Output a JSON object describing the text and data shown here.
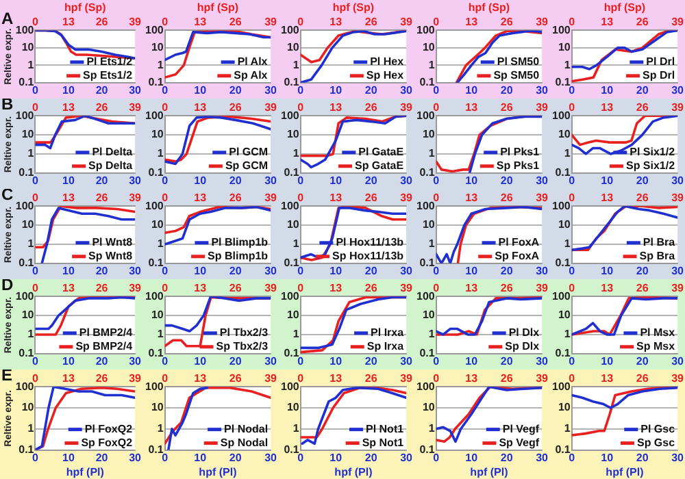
{
  "chart_data": [
    {
      "type": "line",
      "title": "A",
      "ylabel": "Reltive expr.",
      "x2label": "hpf (Sp)",
      "xlim": [
        0,
        30
      ],
      "xticks": [
        0,
        10,
        20,
        30
      ],
      "x2lim": [
        0,
        39
      ],
      "x2ticks": [
        0,
        13,
        26,
        39
      ],
      "ylim": [
        0.1,
        100
      ],
      "yticks": [
        0.1,
        1,
        10,
        100
      ],
      "log": "y",
      "grid": "y",
      "legend": "bottom right",
      "marker": "none",
      "series": [
        {
          "name": "Pl Ets1/2",
          "color": "#2030d0",
          "x": [
            0,
            3,
            6,
            8,
            10,
            12,
            16,
            20,
            24,
            28,
            30
          ],
          "values": [
            100,
            100,
            90,
            50,
            15,
            8,
            8,
            6,
            4,
            3,
            2.5
          ]
        },
        {
          "name": "Sp Ets1/2",
          "color": "#e82020",
          "axis": "x2",
          "x": [
            0,
            4,
            8,
            10,
            12,
            14,
            16,
            20,
            26,
            32,
            39
          ],
          "values": [
            100,
            100,
            90,
            60,
            20,
            6,
            4,
            4,
            3.5,
            3,
            2.5
          ]
        }
      ]
    },
    {
      "type": "line",
      "x2label": "hpf (Sp)",
      "xlim": [
        0,
        30
      ],
      "xticks": [
        0,
        10,
        20,
        30
      ],
      "x2lim": [
        0,
        39
      ],
      "x2ticks": [
        0,
        13,
        26,
        39
      ],
      "ylim": [
        0.1,
        100
      ],
      "yticks": [
        0.1,
        1,
        10,
        100
      ],
      "log": "y",
      "grid": "y",
      "legend": "bottom right",
      "marker": "none",
      "series": [
        {
          "name": "Pl Alx",
          "color": "#2030d0",
          "x": [
            0,
            3,
            5,
            6,
            8,
            12,
            16,
            20,
            24,
            28,
            30
          ],
          "values": [
            2,
            4,
            5,
            6,
            80,
            70,
            80,
            70,
            60,
            40,
            40
          ]
        },
        {
          "name": "Sp Alx",
          "color": "#e82020",
          "axis": "x2",
          "x": [
            0,
            4,
            7,
            9,
            11,
            16,
            20,
            26,
            32,
            39
          ],
          "values": [
            0.2,
            0.3,
            1,
            10,
            80,
            90,
            90,
            90,
            60,
            40
          ]
        }
      ]
    },
    {
      "type": "line",
      "x2label": "hpf (Sp)",
      "xlim": [
        0,
        30
      ],
      "xticks": [
        0,
        10,
        20,
        30
      ],
      "x2lim": [
        0,
        39
      ],
      "x2ticks": [
        0,
        13,
        26,
        39
      ],
      "ylim": [
        0.1,
        100
      ],
      "yticks": [
        0.1,
        1,
        10,
        100
      ],
      "log": "y",
      "grid": "y",
      "legend": "bottom right",
      "marker": "none",
      "series": [
        {
          "name": "Pl Hex",
          "color": "#2030d0",
          "x": [
            0,
            3,
            6,
            9,
            12,
            15,
            18,
            21,
            24,
            28,
            30
          ],
          "values": [
            0.1,
            0.15,
            1,
            10,
            50,
            80,
            90,
            60,
            60,
            80,
            90
          ]
        },
        {
          "name": "Sp Hex",
          "color": "#e82020",
          "axis": "x2",
          "x": [
            0,
            4,
            7,
            10,
            14,
            20,
            26,
            30,
            36,
            39
          ],
          "values": [
            4,
            1.5,
            2,
            10,
            50,
            90,
            70,
            60,
            80,
            100
          ]
        }
      ]
    },
    {
      "type": "line",
      "x2label": "hpf (Sp)",
      "xlim": [
        0,
        30
      ],
      "xticks": [
        0,
        10,
        20,
        30
      ],
      "x2lim": [
        0,
        39
      ],
      "x2ticks": [
        0,
        13,
        26,
        39
      ],
      "ylim": [
        0.1,
        100
      ],
      "yticks": [
        0.1,
        1,
        10,
        100
      ],
      "log": "y",
      "grid": "y",
      "legend": "bottom right",
      "marker": "none",
      "series": [
        {
          "name": "Pl SM50",
          "color": "#2030d0",
          "x": [
            6,
            8,
            10,
            12,
            14,
            16,
            18,
            20,
            22,
            24,
            26,
            28,
            30
          ],
          "values": [
            0.1,
            0.3,
            1,
            3,
            5,
            20,
            50,
            60,
            70,
            80,
            90,
            90,
            80
          ]
        },
        {
          "name": "Sp SM50",
          "color": "#e82020",
          "axis": "x2",
          "x": [
            7.5,
            11,
            16,
            18,
            22,
            26,
            32,
            39
          ],
          "values": [
            0.1,
            1,
            5,
            10,
            50,
            90,
            90,
            70
          ]
        }
      ]
    },
    {
      "type": "line",
      "x2label": "hpf (Sp)",
      "xlim": [
        0,
        30
      ],
      "xticks": [
        0,
        10,
        20,
        30
      ],
      "x2lim": [
        0,
        39
      ],
      "x2ticks": [
        0,
        13,
        26,
        39
      ],
      "ylim": [
        0.1,
        100
      ],
      "yticks": [
        0.1,
        1,
        10,
        100
      ],
      "log": "y",
      "grid": "y",
      "legend": "bottom right",
      "marker": "none",
      "series": [
        {
          "name": "Pl Drl",
          "color": "#2030d0",
          "x": [
            0,
            3,
            5,
            7,
            10,
            13,
            15,
            17,
            20,
            24,
            27,
            30
          ],
          "values": [
            0.8,
            0.8,
            0.6,
            1,
            3,
            10,
            10,
            6,
            8,
            30,
            80,
            100
          ]
        },
        {
          "name": "Sp Drl",
          "color": "#e82020",
          "axis": "x2",
          "x": [
            0,
            4,
            8,
            11,
            16,
            22,
            26,
            32,
            36,
            39
          ],
          "values": [
            0.12,
            0.15,
            0.2,
            2,
            8,
            6,
            10,
            60,
            100,
            100
          ]
        }
      ]
    },
    {
      "type": "line",
      "title": "B",
      "ylabel": "Reltive expr.",
      "xlim": [
        0,
        30
      ],
      "xticks": [
        0,
        10,
        20,
        30
      ],
      "x2lim": [
        0,
        39
      ],
      "x2ticks": [
        0,
        13,
        26,
        39
      ],
      "ylim": [
        0.1,
        100
      ],
      "yticks": [
        0.1,
        1,
        10,
        100
      ],
      "log": "y",
      "grid": "y",
      "legend": "bottom right",
      "marker": "none",
      "series": [
        {
          "name": "Pl Delta",
          "color": "#2030d0",
          "x": [
            0,
            3,
            4.5,
            6,
            8,
            12,
            15,
            19,
            22,
            26,
            30
          ],
          "values": [
            3,
            3,
            2,
            10,
            50,
            60,
            100,
            60,
            40,
            40,
            40
          ]
        },
        {
          "name": "Sp Delta",
          "color": "#e82020",
          "axis": "x2",
          "x": [
            0,
            6,
            8,
            12,
            18,
            24,
            30,
            39
          ],
          "values": [
            4,
            4,
            10,
            80,
            100,
            70,
            50,
            40
          ]
        }
      ]
    },
    {
      "type": "line",
      "xlim": [
        0,
        30
      ],
      "xticks": [
        0,
        10,
        20,
        30
      ],
      "x2lim": [
        0,
        39
      ],
      "x2ticks": [
        0,
        13,
        26,
        39
      ],
      "ylim": [
        0.1,
        100
      ],
      "yticks": [
        0.1,
        1,
        10,
        100
      ],
      "log": "y",
      "grid": "y",
      "legend": "bottom right",
      "marker": "none",
      "series": [
        {
          "name": "Pl GCM",
          "color": "#2030d0",
          "x": [
            0,
            3,
            5,
            7,
            9,
            12,
            16,
            20,
            25,
            30
          ],
          "values": [
            0.4,
            0.3,
            1,
            30,
            80,
            90,
            80,
            60,
            40,
            20
          ]
        },
        {
          "name": "Sp GCM",
          "color": "#e82020",
          "axis": "x2",
          "x": [
            0,
            4,
            6,
            8,
            12,
            16,
            24,
            32,
            39
          ],
          "values": [
            0.5,
            0.4,
            0.5,
            1,
            50,
            80,
            90,
            70,
            50
          ]
        }
      ]
    },
    {
      "type": "line",
      "xlim": [
        0,
        30
      ],
      "xticks": [
        0,
        10,
        20,
        30
      ],
      "x2lim": [
        0,
        39
      ],
      "x2ticks": [
        0,
        13,
        26,
        39
      ],
      "ylim": [
        0.1,
        100
      ],
      "yticks": [
        0.1,
        1,
        10,
        100
      ],
      "log": "y",
      "grid": "y",
      "legend": "bottom right",
      "marker": "none",
      "series": [
        {
          "name": "Pl GataE",
          "color": "#2030d0",
          "x": [
            0,
            2,
            3,
            5,
            7,
            10,
            12,
            16,
            20,
            24,
            27,
            30
          ],
          "values": [
            0.5,
            0.3,
            0.2,
            0.3,
            0.5,
            5,
            50,
            60,
            50,
            40,
            90,
            100
          ]
        },
        {
          "name": "Sp GataE",
          "color": "#e82020",
          "axis": "x2",
          "x": [
            0,
            4,
            10,
            12,
            14,
            17,
            24,
            30,
            35,
            39
          ],
          "values": [
            0.8,
            0.8,
            0.8,
            1,
            40,
            80,
            70,
            50,
            90,
            100
          ]
        }
      ]
    },
    {
      "type": "line",
      "xlim": [
        0,
        30
      ],
      "xticks": [
        0,
        10,
        20,
        30
      ],
      "x2lim": [
        0,
        39
      ],
      "x2ticks": [
        0,
        13,
        26,
        39
      ],
      "ylim": [
        0.1,
        100
      ],
      "yticks": [
        0.1,
        1,
        10,
        100
      ],
      "log": "y",
      "grid": "y",
      "legend": "bottom right",
      "marker": "none",
      "series": [
        {
          "name": "Pl Pks1",
          "color": "#2030d0",
          "x": [
            9.5,
            11,
            13,
            16,
            20,
            25,
            30
          ],
          "values": [
            0.1,
            1,
            10,
            40,
            70,
            90,
            90
          ]
        },
        {
          "name": "Sp Pks1",
          "color": "#e82020",
          "axis": "x2",
          "x": [
            0,
            2,
            6,
            10,
            12,
            14,
            16,
            20,
            26,
            32,
            39
          ],
          "values": [
            0.4,
            0.15,
            0.12,
            0.15,
            0.15,
            1,
            10,
            30,
            70,
            90,
            100
          ]
        }
      ]
    },
    {
      "type": "line",
      "xlim": [
        0,
        30
      ],
      "xticks": [
        0,
        10,
        20,
        30
      ],
      "x2lim": [
        0,
        39
      ],
      "x2ticks": [
        0,
        13,
        26,
        39
      ],
      "ylim": [
        0.1,
        100
      ],
      "yticks": [
        0.1,
        1,
        10,
        100
      ],
      "log": "y",
      "grid": "y",
      "legend": "bottom right",
      "marker": "none",
      "series": [
        {
          "name": "Pl Six1/2",
          "color": "#2030d0",
          "x": [
            0,
            2,
            4,
            6,
            8,
            11,
            14,
            17,
            20,
            23,
            26,
            30
          ],
          "values": [
            3,
            2,
            1,
            2,
            2,
            1,
            1.5,
            3,
            10,
            50,
            80,
            100
          ]
        },
        {
          "name": "Sp Six1/2",
          "color": "#e82020",
          "axis": "x2",
          "x": [
            0,
            3,
            6,
            9,
            14,
            20,
            22,
            24,
            27,
            39
          ],
          "values": [
            10,
            3,
            4,
            5,
            4,
            4,
            5,
            40,
            100,
            100
          ]
        }
      ]
    },
    {
      "type": "line",
      "title": "C",
      "ylabel": "Reltive expr.",
      "xlim": [
        0,
        30
      ],
      "xticks": [
        0,
        10,
        20,
        30
      ],
      "x2lim": [
        0,
        39
      ],
      "x2ticks": [
        0,
        13,
        26,
        39
      ],
      "ylim": [
        0.1,
        100
      ],
      "yticks": [
        0.1,
        1,
        10,
        100
      ],
      "log": "y",
      "grid": "y",
      "legend": "bottom right",
      "marker": "none",
      "series": [
        {
          "name": "Pl Wnt8",
          "color": "#2030d0",
          "x": [
            2,
            3.5,
            5,
            7,
            10,
            14,
            18,
            22,
            26,
            30
          ],
          "values": [
            0.1,
            1,
            20,
            80,
            60,
            40,
            40,
            30,
            20,
            20
          ]
        },
        {
          "name": "Sp Wnt8",
          "color": "#e82020",
          "axis": "x2",
          "x": [
            0,
            3,
            5,
            7,
            10,
            16,
            24,
            32,
            39
          ],
          "values": [
            0.7,
            0.7,
            1.5,
            20,
            100,
            80,
            80,
            70,
            50
          ]
        }
      ]
    },
    {
      "type": "line",
      "xlim": [
        0,
        30
      ],
      "xticks": [
        0,
        10,
        20,
        30
      ],
      "x2lim": [
        0,
        39
      ],
      "x2ticks": [
        0,
        13,
        26,
        39
      ],
      "ylim": [
        0.1,
        100
      ],
      "yticks": [
        0.1,
        1,
        10,
        100
      ],
      "log": "y",
      "grid": "y",
      "legend": "bottom right",
      "marker": "none",
      "series": [
        {
          "name": "Pl Blimp1b",
          "color": "#2030d0",
          "x": [
            0,
            3,
            5,
            7,
            10,
            13,
            17,
            22,
            26,
            30
          ],
          "values": [
            1,
            1.5,
            2,
            20,
            40,
            50,
            80,
            80,
            90,
            60
          ]
        },
        {
          "name": "Sp Blimp1b",
          "color": "#e82020",
          "axis": "x2",
          "x": [
            0,
            4,
            7,
            9,
            13,
            20,
            28,
            34,
            39
          ],
          "values": [
            4,
            5,
            8,
            30,
            50,
            90,
            80,
            90,
            70
          ]
        }
      ]
    },
    {
      "type": "line",
      "xlim": [
        0,
        30
      ],
      "xticks": [
        0,
        10,
        20,
        30
      ],
      "x2lim": [
        0,
        39
      ],
      "x2ticks": [
        0,
        13,
        26,
        39
      ],
      "ylim": [
        0.1,
        100
      ],
      "yticks": [
        0.1,
        1,
        10,
        100
      ],
      "log": "y",
      "grid": "y",
      "legend": "bottom right",
      "marker": "none",
      "series": [
        {
          "name": "Pl Hox11/13b",
          "color": "#2030d0",
          "x": [
            0,
            3,
            5,
            7,
            9,
            11,
            14,
            18,
            22,
            26,
            30
          ],
          "values": [
            0.2,
            0.3,
            0.2,
            0.3,
            2,
            80,
            80,
            60,
            50,
            40,
            40
          ]
        },
        {
          "name": "Sp Hox11/13b",
          "color": "#e82020",
          "axis": "x2",
          "x": [
            0,
            4,
            8,
            11,
            14,
            18,
            24,
            30,
            34,
            39
          ],
          "values": [
            0.2,
            0.15,
            0.2,
            1,
            80,
            100,
            80,
            30,
            20,
            20
          ]
        }
      ]
    },
    {
      "type": "line",
      "xlim": [
        0,
        30
      ],
      "xticks": [
        0,
        10,
        20,
        30
      ],
      "x2lim": [
        0,
        39
      ],
      "x2ticks": [
        0,
        13,
        26,
        39
      ],
      "ylim": [
        0.1,
        100
      ],
      "yticks": [
        0.1,
        1,
        10,
        100
      ],
      "log": "y",
      "grid": "y",
      "legend": "bottom right",
      "marker": "none",
      "series": [
        {
          "name": "Pl FoxA",
          "color": "#2030d0",
          "x": [
            0,
            1.5,
            3,
            4,
            5,
            6,
            8,
            10,
            14,
            20,
            25,
            30
          ],
          "values": [
            0.3,
            0.1,
            0.3,
            0.1,
            0.4,
            1,
            10,
            40,
            70,
            80,
            90,
            70
          ]
        },
        {
          "name": "Sp FoxA",
          "color": "#e82020",
          "axis": "x2",
          "x": [
            8,
            9,
            11,
            14,
            20,
            28,
            39
          ],
          "values": [
            0.1,
            1,
            10,
            40,
            80,
            90,
            80
          ]
        }
      ]
    },
    {
      "type": "line",
      "xlim": [
        0,
        30
      ],
      "xticks": [
        0,
        10,
        20,
        30
      ],
      "x2lim": [
        0,
        39
      ],
      "x2ticks": [
        0,
        13,
        26,
        39
      ],
      "ylim": [
        0.1,
        100
      ],
      "yticks": [
        0.1,
        1,
        10,
        100
      ],
      "log": "y",
      "grid": "y",
      "legend": "bottom right",
      "marker": "none",
      "series": [
        {
          "name": "Pl Bra",
          "color": "#2030d0",
          "x": [
            0,
            3,
            5,
            7,
            10,
            13,
            15,
            19,
            22,
            26,
            30
          ],
          "values": [
            0.5,
            0.6,
            0.7,
            2,
            10,
            50,
            100,
            70,
            60,
            40,
            25
          ]
        },
        {
          "name": "Sp Bra",
          "color": "#e82020",
          "axis": "x2",
          "x": [
            0,
            6,
            9,
            12,
            16,
            20,
            26,
            32,
            39
          ],
          "values": [
            0.5,
            0.5,
            2,
            5,
            40,
            100,
            100,
            80,
            90
          ]
        }
      ]
    },
    {
      "type": "line",
      "title": "D",
      "ylabel": "Reltive expr.",
      "xlim": [
        0,
        30
      ],
      "xticks": [
        0,
        10,
        20,
        30
      ],
      "x2lim": [
        0,
        39
      ],
      "x2ticks": [
        0,
        13,
        26,
        39
      ],
      "ylim": [
        0.1,
        100
      ],
      "yticks": [
        0.1,
        1,
        10,
        100
      ],
      "log": "y",
      "grid": "y",
      "legend": "bottom right",
      "marker": "none",
      "series": [
        {
          "name": "Pl BMP2/4",
          "color": "#2030d0",
          "x": [
            0,
            4,
            5,
            7,
            9,
            12,
            16,
            22,
            26,
            30
          ],
          "values": [
            2,
            2,
            3,
            10,
            20,
            60,
            80,
            80,
            90,
            80
          ]
        },
        {
          "name": "Sp BMP2/4",
          "color": "#e82020",
          "axis": "x2",
          "x": [
            0,
            8,
            10,
            13,
            17,
            24,
            32,
            39
          ],
          "values": [
            1,
            1,
            3,
            30,
            80,
            90,
            90,
            90
          ]
        }
      ]
    },
    {
      "type": "line",
      "xlim": [
        0,
        30
      ],
      "xticks": [
        0,
        10,
        20,
        30
      ],
      "x2lim": [
        0,
        39
      ],
      "x2ticks": [
        0,
        13,
        26,
        39
      ],
      "ylim": [
        0.1,
        100
      ],
      "yticks": [
        0.1,
        1,
        10,
        100
      ],
      "log": "y",
      "grid": "y",
      "legend": "bottom right",
      "marker": "none",
      "series": [
        {
          "name": "Pl Tbx2/3",
          "color": "#2030d0",
          "x": [
            0,
            2,
            5,
            7,
            9,
            11,
            13,
            17,
            21,
            26,
            30
          ],
          "values": [
            3,
            3,
            2,
            1.5,
            3,
            10,
            100,
            80,
            60,
            80,
            80
          ]
        },
        {
          "name": "Sp Tbx2/3",
          "color": "#e82020",
          "axis": "x2",
          "x": [
            0,
            3,
            6,
            8,
            13,
            15,
            17,
            24,
            39
          ],
          "values": [
            0.25,
            0.5,
            0.5,
            0.25,
            0.25,
            10,
            90,
            80,
            80
          ]
        }
      ]
    },
    {
      "type": "line",
      "xlim": [
        0,
        30
      ],
      "xticks": [
        0,
        10,
        20,
        30
      ],
      "x2lim": [
        0,
        39
      ],
      "x2ticks": [
        0,
        13,
        26,
        39
      ],
      "ylim": [
        0.1,
        100
      ],
      "yticks": [
        0.1,
        1,
        10,
        100
      ],
      "log": "y",
      "grid": "y",
      "legend": "bottom right",
      "marker": "none",
      "series": [
        {
          "name": "Pl Irxa",
          "color": "#2030d0",
          "x": [
            0,
            5,
            9,
            11,
            13,
            17,
            22,
            26,
            30
          ],
          "values": [
            0.2,
            0.2,
            0.3,
            2,
            20,
            40,
            70,
            90,
            90
          ]
        },
        {
          "name": "Sp Irxa",
          "color": "#e82020",
          "axis": "x2",
          "x": [
            0,
            8,
            12,
            14,
            18,
            24,
            32,
            39
          ],
          "values": [
            0.12,
            0.15,
            0.5,
            5,
            50,
            90,
            90,
            90
          ]
        }
      ]
    },
    {
      "type": "line",
      "xlim": [
        0,
        30
      ],
      "xticks": [
        0,
        10,
        20,
        30
      ],
      "x2lim": [
        0,
        39
      ],
      "x2ticks": [
        0,
        13,
        26,
        39
      ],
      "ylim": [
        0.1,
        100
      ],
      "yticks": [
        0.1,
        1,
        10,
        100
      ],
      "log": "y",
      "grid": "y",
      "legend": "bottom right",
      "marker": "none",
      "series": [
        {
          "name": "Pl Dlx",
          "color": "#2030d0",
          "x": [
            0,
            2,
            4,
            6,
            9,
            11,
            13,
            15,
            20,
            24,
            30
          ],
          "values": [
            1.5,
            1,
            2,
            2,
            1,
            1,
            5,
            50,
            80,
            70,
            80
          ]
        },
        {
          "name": "Sp Dlx",
          "color": "#e82020",
          "axis": "x2",
          "x": [
            0,
            8,
            12,
            15,
            18,
            22,
            30,
            39
          ],
          "values": [
            1,
            1,
            1.5,
            1,
            20,
            80,
            80,
            90
          ]
        }
      ]
    },
    {
      "type": "line",
      "xlim": [
        0,
        30
      ],
      "xticks": [
        0,
        10,
        20,
        30
      ],
      "x2lim": [
        0,
        39
      ],
      "x2ticks": [
        0,
        13,
        26,
        39
      ],
      "ylim": [
        0.1,
        100
      ],
      "yticks": [
        0.1,
        1,
        10,
        100
      ],
      "log": "y",
      "grid": "y",
      "legend": "bottom right",
      "marker": "none",
      "series": [
        {
          "name": "Pl Msx",
          "color": "#2030d0",
          "x": [
            0,
            4,
            6,
            8,
            10,
            12,
            14,
            17,
            21,
            26,
            30
          ],
          "values": [
            1,
            2,
            4,
            1.5,
            1,
            1,
            10,
            80,
            70,
            80,
            80
          ]
        },
        {
          "name": "Sp Msx",
          "color": "#e82020",
          "axis": "x2",
          "x": [
            0,
            8,
            12,
            14,
            18,
            21,
            28,
            39
          ],
          "values": [
            1,
            1.5,
            1.5,
            1,
            10,
            80,
            90,
            80
          ]
        }
      ]
    },
    {
      "type": "line",
      "title": "E",
      "ylabel": "Reltive expr.",
      "xlabel": "hpf (Pl)",
      "xlim": [
        0,
        30
      ],
      "xticks": [
        0,
        10,
        20,
        30
      ],
      "x2lim": [
        0,
        39
      ],
      "x2ticks": [
        0,
        13,
        26,
        39
      ],
      "ylim": [
        0.1,
        100
      ],
      "yticks": [
        0.1,
        1,
        10,
        100
      ],
      "log": "y",
      "grid": "y",
      "legend": "bottom right",
      "marker": "none",
      "series": [
        {
          "name": "Pl FoxQ2",
          "color": "#2030d0",
          "x": [
            0,
            2,
            4,
            5.5,
            9,
            13,
            17,
            21,
            26,
            30
          ],
          "values": [
            0.1,
            0.15,
            10,
            100,
            80,
            60,
            60,
            40,
            40,
            30
          ]
        },
        {
          "name": "Sp FoxQ2",
          "color": "#e82020",
          "axis": "x2",
          "x": [
            0,
            3,
            5,
            8,
            12,
            18,
            26,
            32,
            39
          ],
          "values": [
            0.1,
            0.15,
            1,
            10,
            50,
            80,
            90,
            80,
            60
          ]
        }
      ]
    },
    {
      "type": "line",
      "xlabel": "hpf (Pl)",
      "xlim": [
        0,
        30
      ],
      "xticks": [
        0,
        10,
        20,
        30
      ],
      "x2lim": [
        0,
        39
      ],
      "x2ticks": [
        0,
        13,
        26,
        39
      ],
      "ylim": [
        0.1,
        100
      ],
      "yticks": [
        0.1,
        1,
        10,
        100
      ],
      "log": "y",
      "grid": "y",
      "legend": "bottom right",
      "marker": "none",
      "series": [
        {
          "name": "Pl Nodal",
          "color": "#2030d0",
          "x": [
            1,
            2,
            3,
            5,
            6,
            8,
            10,
            12
          ],
          "values": [
            0.1,
            1,
            0.5,
            2,
            5,
            50,
            80,
            90
          ]
        },
        {
          "name": "Sp Nodal",
          "color": "#e82020",
          "axis": "x2",
          "x": [
            0,
            3,
            6,
            9,
            15,
            24,
            32,
            39
          ],
          "values": [
            0.2,
            0.8,
            2,
            30,
            90,
            90,
            60,
            30
          ]
        }
      ]
    },
    {
      "type": "line",
      "xlabel": "hpf (Pl)",
      "xlim": [
        0,
        30
      ],
      "xticks": [
        0,
        10,
        20,
        30
      ],
      "x2lim": [
        0,
        39
      ],
      "x2ticks": [
        0,
        13,
        26,
        39
      ],
      "ylim": [
        0.1,
        100
      ],
      "yticks": [
        0.1,
        1,
        10,
        100
      ],
      "log": "y",
      "grid": "y",
      "legend": "bottom right",
      "marker": "none",
      "series": [
        {
          "name": "Pl Not1",
          "color": "#2030d0",
          "x": [
            0.5,
            2,
            4,
            5,
            8,
            10,
            12,
            16,
            22,
            26,
            30
          ],
          "values": [
            0.2,
            0.3,
            0.2,
            1,
            20,
            30,
            70,
            90,
            80,
            50,
            30
          ]
        },
        {
          "name": "Sp Not1",
          "color": "#e82020",
          "axis": "x2",
          "x": [
            0,
            6,
            8,
            12,
            16,
            22,
            28,
            34,
            39
          ],
          "values": [
            0.4,
            0.4,
            1,
            10,
            50,
            90,
            90,
            70,
            50
          ]
        }
      ]
    },
    {
      "type": "line",
      "xlabel": "hpf (Pl)",
      "xlim": [
        0,
        30
      ],
      "xticks": [
        0,
        10,
        20,
        30
      ],
      "x2lim": [
        0,
        39
      ],
      "x2ticks": [
        0,
        13,
        26,
        39
      ],
      "ylim": [
        0.1,
        100
      ],
      "yticks": [
        0.1,
        1,
        10,
        100
      ],
      "log": "y",
      "grid": "y",
      "legend": "bottom right",
      "marker": "none",
      "series": [
        {
          "name": "Pl Vegf",
          "color": "#2030d0",
          "x": [
            0,
            2,
            4,
            5.5,
            7,
            10,
            13,
            15,
            20,
            25,
            30
          ],
          "values": [
            1,
            1.2,
            0.8,
            0.25,
            1,
            5,
            30,
            100,
            70,
            80,
            90
          ]
        },
        {
          "name": "Sp Vegf",
          "color": "#e82020",
          "axis": "x2",
          "x": [
            0,
            3,
            5,
            7,
            12,
            16,
            20,
            28,
            39
          ],
          "values": [
            0.3,
            0.25,
            0.4,
            1,
            5,
            30,
            100,
            80,
            90
          ]
        }
      ]
    },
    {
      "type": "line",
      "xlabel": "hpf (Pl)",
      "xlim": [
        0,
        30
      ],
      "xticks": [
        0,
        10,
        20,
        30
      ],
      "x2lim": [
        0,
        39
      ],
      "x2ticks": [
        0,
        13,
        26,
        39
      ],
      "ylim": [
        0.1,
        100
      ],
      "yticks": [
        0.1,
        1,
        10,
        100
      ],
      "log": "y",
      "grid": "y",
      "legend": "bottom right",
      "marker": "none",
      "series": [
        {
          "name": "Pl Gsc",
          "color": "#2030d0",
          "x": [
            0,
            3,
            6,
            9,
            11,
            13,
            16,
            20,
            25,
            30
          ],
          "values": [
            40,
            30,
            20,
            15,
            10,
            15,
            40,
            60,
            80,
            90
          ]
        },
        {
          "name": "Sp Gsc",
          "color": "#e82020",
          "axis": "x2",
          "x": [
            0,
            5,
            10,
            12,
            14,
            16,
            22,
            28,
            39
          ],
          "values": [
            0.5,
            0.6,
            0.8,
            0.8,
            5,
            40,
            60,
            80,
            100
          ]
        }
      ]
    }
  ]
}
